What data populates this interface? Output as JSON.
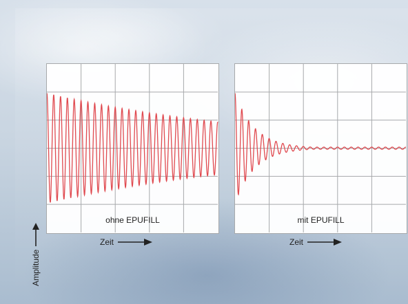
{
  "ylabel": "Amplitude",
  "xlabel": "Zeit",
  "colors": {
    "signal": "#e0494f",
    "grid": "#a7a9ab",
    "axis_text": "#222222"
  },
  "chart_data": [
    {
      "type": "line",
      "label": "ohne EPUFILL",
      "xlabel": "Zeit",
      "ylabel": "Amplitude",
      "grid": true,
      "grid_divisions": {
        "x": 5,
        "y": 6
      },
      "signal": {
        "form": "damped_sine",
        "initial_amplitude": 0.98,
        "final_amplitude": 0.47,
        "cycles": 25,
        "decay": "slow"
      }
    },
    {
      "type": "line",
      "label": "mit EPUFILL",
      "xlabel": "Zeit",
      "ylabel": "Amplitude",
      "grid": true,
      "grid_divisions": {
        "x": 5,
        "y": 6
      },
      "signal": {
        "form": "damped_sine",
        "initial_amplitude": 0.98,
        "final_amplitude": 0.02,
        "cycles": 25,
        "decay": "fast"
      }
    }
  ]
}
